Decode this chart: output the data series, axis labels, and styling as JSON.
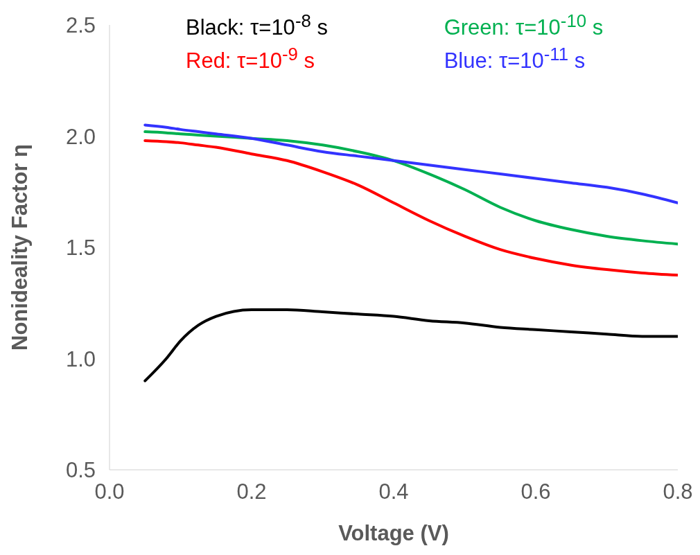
{
  "chart_data": {
    "type": "line",
    "xlabel": "Voltage (V)",
    "ylabel": "Nonideality Factor η",
    "xlim": [
      0,
      0.8
    ],
    "xticks": [
      {
        "value": 0,
        "label": "0.0"
      },
      0.2,
      0.4,
      0.6,
      0.8
    ],
    "ylim": [
      0.5,
      2.5
    ],
    "yticks": [
      0.5,
      {
        "value": 1,
        "label": "1.0"
      },
      1.5,
      {
        "value": 2,
        "label": "2.0"
      },
      2.5
    ],
    "legend": "top",
    "marker": "none",
    "line_style": "solid",
    "x": [
      0.05,
      0.08,
      0.1,
      0.125,
      0.15,
      0.2,
      0.25,
      0.3,
      0.35,
      0.4,
      0.45,
      0.5,
      0.55,
      0.6,
      0.65,
      0.7,
      0.75,
      0.8
    ],
    "series": [
      {
        "name": "Black: τ=10$^{-8}$ s",
        "color": "#000000",
        "values": [
          0.9,
          1.0,
          1.08,
          1.15,
          1.19,
          1.22,
          1.22,
          1.21,
          1.2,
          1.19,
          1.17,
          1.16,
          1.14,
          1.13,
          1.12,
          1.11,
          1.1,
          1.1
        ]
      },
      {
        "name": "Red: τ=10$^{-9}$ s",
        "color": "#ff0000",
        "values": [
          1.98,
          1.975,
          1.97,
          1.96,
          1.95,
          1.92,
          1.89,
          1.84,
          1.78,
          1.7,
          1.62,
          1.55,
          1.49,
          1.45,
          1.42,
          1.4,
          1.385,
          1.375
        ]
      },
      {
        "name": "Green: τ=10$^{-10}$ s",
        "color": "#00b050",
        "values": [
          2.02,
          2.015,
          2.01,
          2.005,
          2.0,
          1.99,
          1.98,
          1.96,
          1.93,
          1.89,
          1.83,
          1.76,
          1.68,
          1.62,
          1.58,
          1.55,
          1.53,
          1.515
        ]
      },
      {
        "name": "Blue: τ=10$^{-11}$ s",
        "color": "#3333ff",
        "values": [
          2.05,
          2.04,
          2.03,
          2.02,
          2.01,
          1.99,
          1.96,
          1.93,
          1.91,
          1.89,
          1.87,
          1.85,
          1.83,
          1.81,
          1.79,
          1.77,
          1.74,
          1.7
        ]
      }
    ]
  }
}
